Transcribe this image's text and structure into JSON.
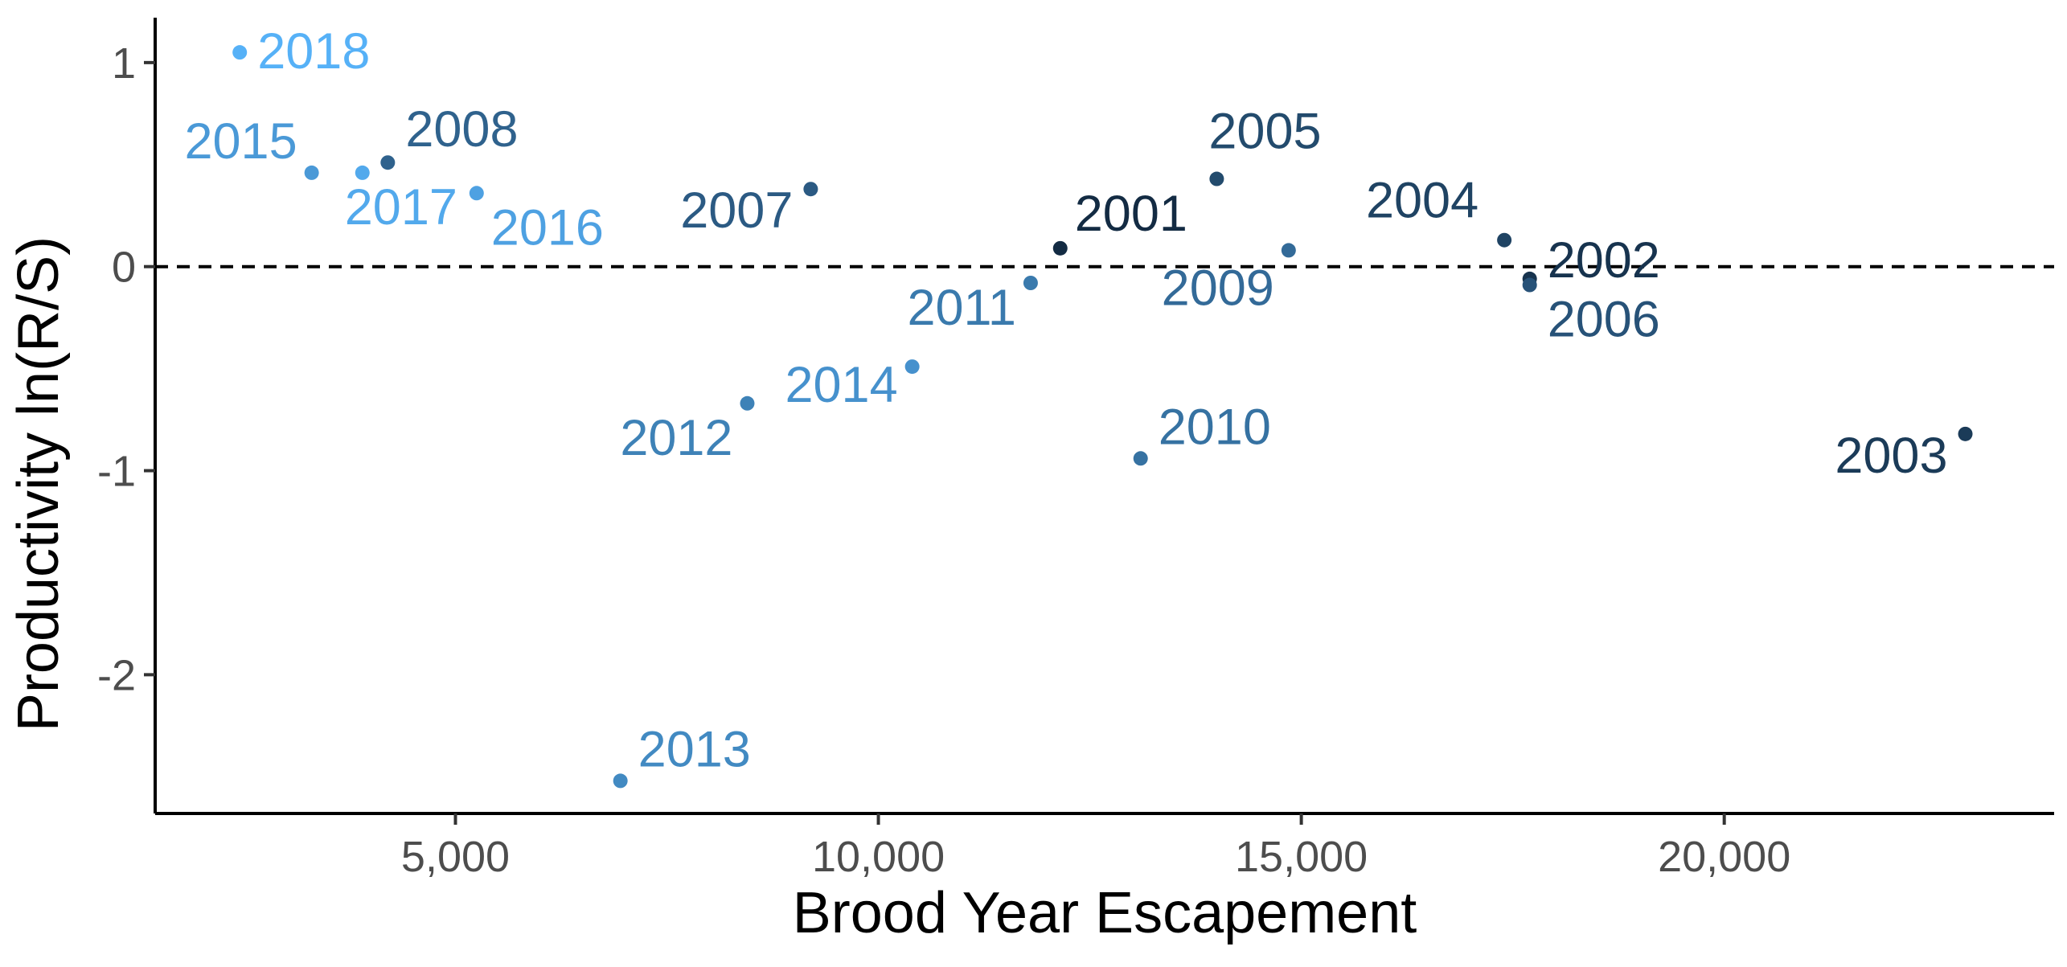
{
  "chart_data": {
    "type": "scatter",
    "xlabel": "Brood Year Escapement",
    "ylabel": "Productivity ln(R/S)",
    "xlim": [
      1450,
      23900
    ],
    "ylim": [
      -2.68,
      1.22
    ],
    "xticks": [
      5000,
      10000,
      15000,
      20000
    ],
    "xtick_labels": [
      "5,000",
      "10,000",
      "15,000",
      "20,000"
    ],
    "yticks": [
      -2,
      -1,
      0,
      1
    ],
    "ytick_labels": [
      "-2",
      "-1",
      "0",
      "1"
    ],
    "reference_line": {
      "y": 0,
      "style": "dashed"
    },
    "grid": false,
    "legend": "none",
    "color_scale": {
      "low_year": 2001,
      "high_year": 2018,
      "low_color": "#132b43",
      "high_color": "#56b1f7"
    },
    "points": [
      {
        "label": "2001",
        "x": 12150,
        "y": 0.09
      },
      {
        "label": "2002",
        "x": 17700,
        "y": -0.06
      },
      {
        "label": "2003",
        "x": 22850,
        "y": -0.82
      },
      {
        "label": "2004",
        "x": 17400,
        "y": 0.13
      },
      {
        "label": "2005",
        "x": 14000,
        "y": 0.43
      },
      {
        "label": "2006",
        "x": 17700,
        "y": -0.09
      },
      {
        "label": "2007",
        "x": 9200,
        "y": 0.38
      },
      {
        "label": "2008",
        "x": 4200,
        "y": 0.51
      },
      {
        "label": "2009",
        "x": 14850,
        "y": 0.08
      },
      {
        "label": "2010",
        "x": 13100,
        "y": -0.94
      },
      {
        "label": "2011",
        "x": 11800,
        "y": -0.08
      },
      {
        "label": "2012",
        "x": 8450,
        "y": -0.67
      },
      {
        "label": "2013",
        "x": 6950,
        "y": -2.52
      },
      {
        "label": "2014",
        "x": 10400,
        "y": -0.49
      },
      {
        "label": "2015",
        "x": 3300,
        "y": 0.46
      },
      {
        "label": "2016",
        "x": 5250,
        "y": 0.36
      },
      {
        "label": "2017",
        "x": 3900,
        "y": 0.46
      },
      {
        "label": "2018",
        "x": 2450,
        "y": 1.05
      }
    ]
  }
}
